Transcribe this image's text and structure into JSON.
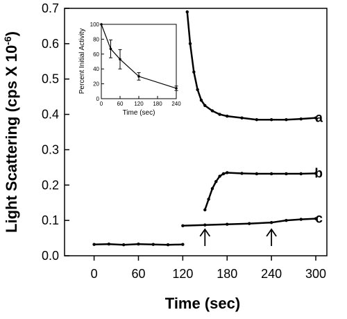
{
  "chart_data": [
    {
      "type": "scatter",
      "title": "",
      "xlabel": "Time (sec)",
      "ylabel": "Light Scattering (cps X 10",
      "ylabel_exponent": "-6",
      "ylabel_close": ")",
      "xlim": [
        -40,
        315
      ],
      "ylim": [
        0.0,
        0.7
      ],
      "xticks": [
        0,
        60,
        120,
        180,
        240,
        300
      ],
      "yticks": [
        0.0,
        0.1,
        0.2,
        0.3,
        0.4,
        0.5,
        0.6,
        0.7
      ],
      "ytick_labels": [
        "0.0",
        "0.1",
        "0.2",
        "0.3",
        "0.4",
        "0.5",
        "0.6",
        "0.7"
      ],
      "grid": false,
      "series": [
        {
          "name": "a",
          "color": "#000000",
          "x": [
            0,
            20,
            40,
            60,
            80,
            100,
            120,
            126,
            130,
            135,
            140,
            145,
            150,
            160,
            170,
            180,
            200,
            220,
            240,
            260,
            280,
            300
          ],
          "y": [
            0.032,
            0.033,
            0.031,
            0.033,
            0.032,
            0.031,
            0.032,
            0.69,
            0.6,
            0.52,
            0.47,
            0.44,
            0.425,
            0.41,
            0.4,
            0.395,
            0.39,
            0.385,
            0.385,
            0.385,
            0.387,
            0.39
          ]
        },
        {
          "name": "b",
          "color": "#000000",
          "x": [
            150,
            155,
            160,
            165,
            170,
            175,
            180,
            200,
            220,
            240,
            260,
            280,
            300
          ],
          "y": [
            0.13,
            0.16,
            0.19,
            0.21,
            0.225,
            0.232,
            0.235,
            0.233,
            0.232,
            0.232,
            0.232,
            0.232,
            0.233
          ]
        },
        {
          "name": "c",
          "color": "#000000",
          "x": [
            120,
            150,
            180,
            210,
            240,
            260,
            280,
            300
          ],
          "y": [
            0.085,
            0.087,
            0.089,
            0.091,
            0.094,
            0.1,
            0.103,
            0.105
          ]
        }
      ],
      "annotations": [
        {
          "type": "arrow",
          "x": 150,
          "direction": "up"
        },
        {
          "type": "arrow",
          "x": 240,
          "direction": "up"
        }
      ]
    },
    {
      "type": "line",
      "title": "",
      "xlabel": "Time (sec)",
      "ylabel": "Percent Initial Activity",
      "xlim": [
        0,
        240
      ],
      "ylim": [
        0,
        100
      ],
      "xticks": [
        0,
        60,
        120,
        180,
        240
      ],
      "yticks": [
        0,
        20,
        40,
        60,
        80,
        100
      ],
      "grid": false,
      "series": [
        {
          "x": [
            0,
            30,
            60,
            120,
            240
          ],
          "y": [
            100,
            67,
            53,
            30,
            14
          ],
          "error": [
            0,
            12,
            13,
            5,
            3
          ],
          "color": "#000000"
        }
      ]
    }
  ]
}
